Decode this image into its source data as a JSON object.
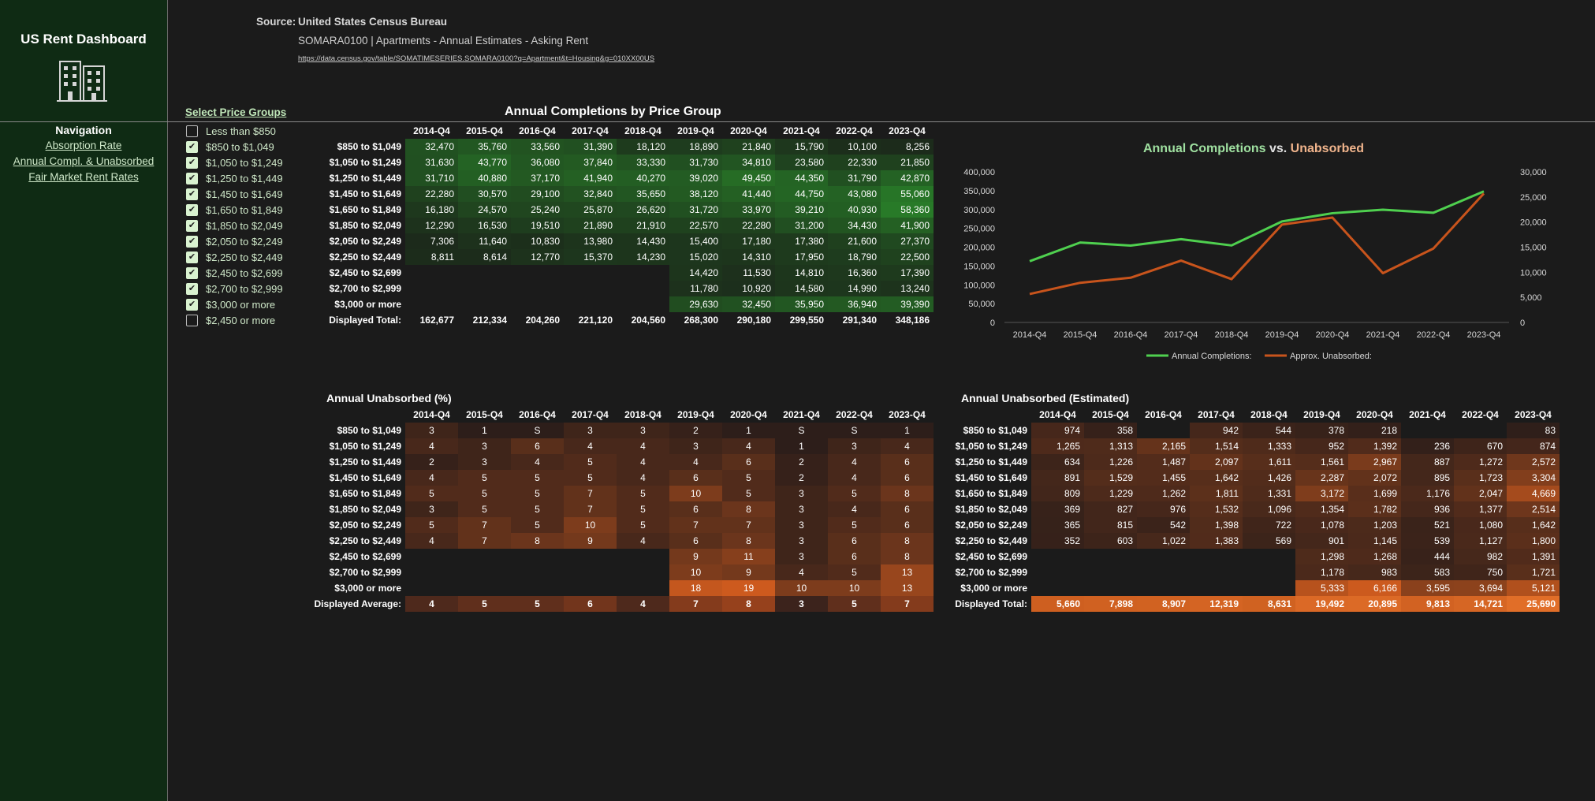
{
  "sidebar": {
    "title": "US Rent Dashboard",
    "icon": "buildings-icon",
    "nav_heading": "Navigation",
    "links": [
      "Absorption Rate",
      "Annual Compl. & Unabsorbed",
      "Fair Market Rent Rates"
    ]
  },
  "source": {
    "label": "Source:",
    "name": "United States Census Bureau",
    "table": "SOMARA0100  |  Apartments - Annual Estimates - Asking Rent",
    "url": "https://data.census.gov/table/SOMATIMESERIES.SOMARA0100?q=Apartment&t=Housing&g=010XX00US"
  },
  "price_groups": {
    "title": "Select Price Groups",
    "items": [
      {
        "label": "Less than $850",
        "checked": false
      },
      {
        "label": "$850 to $1,049",
        "checked": true
      },
      {
        "label": "$1,050 to $1,249",
        "checked": true
      },
      {
        "label": "$1,250 to $1,449",
        "checked": true
      },
      {
        "label": "$1,450 to $1,649",
        "checked": true
      },
      {
        "label": "$1,650 to $1,849",
        "checked": true
      },
      {
        "label": "$1,850 to $2,049",
        "checked": true
      },
      {
        "label": "$2,050 to $2,249",
        "checked": true
      },
      {
        "label": "$2,250 to $2,449",
        "checked": true
      },
      {
        "label": "$2,450 to $2,699",
        "checked": true
      },
      {
        "label": "$2,700 to $2,999",
        "checked": true
      },
      {
        "label": "$3,000 or more",
        "checked": true
      },
      {
        "label": "$2,450 or more",
        "checked": false
      }
    ]
  },
  "quarters": [
    "2014-Q4",
    "2015-Q4",
    "2016-Q4",
    "2017-Q4",
    "2018-Q4",
    "2019-Q4",
    "2020-Q4",
    "2021-Q4",
    "2022-Q4",
    "2023-Q4"
  ],
  "row_labels": [
    "$850 to $1,049",
    "$1,050 to $1,249",
    "$1,250 to $1,449",
    "$1,450 to $1,649",
    "$1,650 to $1,849",
    "$1,850 to $2,049",
    "$2,050 to $2,249",
    "$2,250 to $2,449",
    "$2,450 to $2,699",
    "$2,700 to $2,999",
    "$3,000 or more"
  ],
  "completions": {
    "title": "Annual Completions by Price Group",
    "total_label": "Displayed Total:",
    "rows": [
      [
        "32,470",
        "35,760",
        "33,560",
        "31,390",
        "18,120",
        "18,890",
        "21,840",
        "15,790",
        "10,100",
        "8,256"
      ],
      [
        "31,630",
        "43,770",
        "36,080",
        "37,840",
        "33,330",
        "31,730",
        "34,810",
        "23,580",
        "22,330",
        "21,850"
      ],
      [
        "31,710",
        "40,880",
        "37,170",
        "41,940",
        "40,270",
        "39,020",
        "49,450",
        "44,350",
        "31,790",
        "42,870"
      ],
      [
        "22,280",
        "30,570",
        "29,100",
        "32,840",
        "35,650",
        "38,120",
        "41,440",
        "44,750",
        "43,080",
        "55,060"
      ],
      [
        "16,180",
        "24,570",
        "25,240",
        "25,870",
        "26,620",
        "31,720",
        "33,970",
        "39,210",
        "40,930",
        "58,360"
      ],
      [
        "12,290",
        "16,530",
        "19,510",
        "21,890",
        "21,910",
        "22,570",
        "22,280",
        "31,200",
        "34,430",
        "41,900"
      ],
      [
        "7,306",
        "11,640",
        "10,830",
        "13,980",
        "14,430",
        "15,400",
        "17,180",
        "17,380",
        "21,600",
        "27,370"
      ],
      [
        "8,811",
        "8,614",
        "12,770",
        "15,370",
        "14,230",
        "15,020",
        "14,310",
        "17,950",
        "18,790",
        "22,500"
      ],
      [
        "",
        "",
        "",
        "",
        "",
        "14,420",
        "11,530",
        "14,810",
        "16,360",
        "17,390"
      ],
      [
        "",
        "",
        "",
        "",
        "",
        "11,780",
        "10,920",
        "14,580",
        "14,990",
        "13,240"
      ],
      [
        "",
        "",
        "",
        "",
        "",
        "29,630",
        "32,450",
        "35,950",
        "36,940",
        "39,390"
      ]
    ],
    "totals": [
      "162,677",
      "212,334",
      "204,260",
      "221,120",
      "204,560",
      "268,300",
      "290,180",
      "299,550",
      "291,340",
      "348,186"
    ]
  },
  "unabsorbed_pct": {
    "title": "Annual Unabsorbed (%)",
    "total_label": "Displayed Average:",
    "rows": [
      [
        "3",
        "1",
        "S",
        "3",
        "3",
        "2",
        "1",
        "S",
        "S",
        "1"
      ],
      [
        "4",
        "3",
        "6",
        "4",
        "4",
        "3",
        "4",
        "1",
        "3",
        "4"
      ],
      [
        "2",
        "3",
        "4",
        "5",
        "4",
        "4",
        "6",
        "2",
        "4",
        "6"
      ],
      [
        "4",
        "5",
        "5",
        "5",
        "4",
        "6",
        "5",
        "2",
        "4",
        "6"
      ],
      [
        "5",
        "5",
        "5",
        "7",
        "5",
        "10",
        "5",
        "3",
        "5",
        "8"
      ],
      [
        "3",
        "5",
        "5",
        "7",
        "5",
        "6",
        "8",
        "3",
        "4",
        "6"
      ],
      [
        "5",
        "7",
        "5",
        "10",
        "5",
        "7",
        "7",
        "3",
        "5",
        "6"
      ],
      [
        "4",
        "7",
        "8",
        "9",
        "4",
        "6",
        "8",
        "3",
        "6",
        "8"
      ],
      [
        "",
        "",
        "",
        "",
        "",
        "9",
        "11",
        "3",
        "6",
        "8"
      ],
      [
        "",
        "",
        "",
        "",
        "",
        "10",
        "9",
        "4",
        "5",
        "13"
      ],
      [
        "",
        "",
        "",
        "",
        "",
        "18",
        "19",
        "10",
        "10",
        "13"
      ]
    ],
    "totals": [
      "4",
      "5",
      "5",
      "6",
      "4",
      "7",
      "8",
      "3",
      "5",
      "7"
    ]
  },
  "unabsorbed_est": {
    "title": "Annual Unabsorbed (Estimated)",
    "total_label": "Displayed Total:",
    "rows": [
      [
        "974",
        "358",
        "",
        "942",
        "544",
        "378",
        "218",
        "",
        "",
        "83"
      ],
      [
        "1,265",
        "1,313",
        "2,165",
        "1,514",
        "1,333",
        "952",
        "1,392",
        "236",
        "670",
        "874"
      ],
      [
        "634",
        "1,226",
        "1,487",
        "2,097",
        "1,611",
        "1,561",
        "2,967",
        "887",
        "1,272",
        "2,572"
      ],
      [
        "891",
        "1,529",
        "1,455",
        "1,642",
        "1,426",
        "2,287",
        "2,072",
        "895",
        "1,723",
        "3,304"
      ],
      [
        "809",
        "1,229",
        "1,262",
        "1,811",
        "1,331",
        "3,172",
        "1,699",
        "1,176",
        "2,047",
        "4,669"
      ],
      [
        "369",
        "827",
        "976",
        "1,532",
        "1,096",
        "1,354",
        "1,782",
        "936",
        "1,377",
        "2,514"
      ],
      [
        "365",
        "815",
        "542",
        "1,398",
        "722",
        "1,078",
        "1,203",
        "521",
        "1,080",
        "1,642"
      ],
      [
        "352",
        "603",
        "1,022",
        "1,383",
        "569",
        "901",
        "1,145",
        "539",
        "1,127",
        "1,800"
      ],
      [
        "",
        "",
        "",
        "",
        "",
        "1,298",
        "1,268",
        "444",
        "982",
        "1,391"
      ],
      [
        "",
        "",
        "",
        "",
        "",
        "1,178",
        "983",
        "583",
        "750",
        "1,721"
      ],
      [
        "",
        "",
        "",
        "",
        "",
        "5,333",
        "6,166",
        "3,595",
        "3,694",
        "5,121"
      ]
    ],
    "totals": [
      "5,660",
      "7,898",
      "8,907",
      "12,319",
      "8,631",
      "19,492",
      "20,895",
      "9,813",
      "14,721",
      "25,690"
    ]
  },
  "chart_data": {
    "type": "line",
    "title": "Annual Completions vs. Unabsorbed",
    "title_parts": [
      "Annual Completions",
      " vs. ",
      "Unabsorbed"
    ],
    "x": [
      "2014-Q4",
      "2015-Q4",
      "2016-Q4",
      "2017-Q4",
      "2018-Q4",
      "2019-Q4",
      "2020-Q4",
      "2021-Q4",
      "2022-Q4",
      "2023-Q4"
    ],
    "series": [
      {
        "name": "Annual Completions:",
        "axis": "left",
        "color": "#4fd04f",
        "values": [
          162677,
          212334,
          204260,
          221120,
          204560,
          268300,
          290180,
          299550,
          291340,
          348186
        ]
      },
      {
        "name": "Approx. Unabsorbed:",
        "axis": "right",
        "color": "#c8541c",
        "values": [
          5660,
          7898,
          8907,
          12319,
          8631,
          19492,
          20895,
          9813,
          14721,
          25690
        ]
      }
    ],
    "y_left": {
      "range": [
        0,
        400000
      ],
      "ticks": [
        "0",
        "50,000",
        "100,000",
        "150,000",
        "200,000",
        "250,000",
        "300,000",
        "350,000",
        "400,000"
      ]
    },
    "y_right": {
      "range": [
        0,
        30000
      ],
      "ticks": [
        "0",
        "5,000",
        "10,000",
        "15,000",
        "20,000",
        "25,000",
        "30,000"
      ]
    },
    "grid": false,
    "legend": "bottom"
  }
}
